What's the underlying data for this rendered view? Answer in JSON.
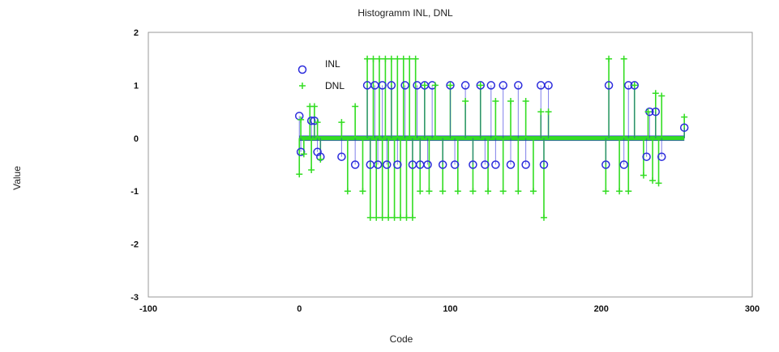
{
  "chart_data": {
    "type": "scatter",
    "title": "Histogramm INL, DNL",
    "xlabel": "Code",
    "ylabel": "Value",
    "xlim": [
      -100,
      300
    ],
    "ylim": [
      -3,
      2
    ],
    "xticks": [
      -100,
      0,
      100,
      200,
      300
    ],
    "yticks": [
      -3,
      -2,
      -1,
      0,
      1,
      2
    ],
    "xtick_labels": [
      "-100",
      "0",
      "100",
      "200",
      "300"
    ],
    "ytick_labels": [
      "-3",
      "-2",
      "-1",
      "0",
      "1",
      "2"
    ],
    "grid": true,
    "legend": "top-left inside",
    "series": [
      {
        "name": "INL",
        "marker": "circle",
        "color": "#2b2bdc",
        "x": [
          0,
          1,
          8,
          10,
          12,
          14,
          28,
          37,
          45,
          47,
          50,
          52,
          55,
          58,
          61,
          65,
          70,
          75,
          78,
          80,
          83,
          85,
          88,
          95,
          100,
          103,
          110,
          115,
          120,
          123,
          127,
          130,
          135,
          140,
          145,
          150,
          160,
          162,
          165,
          203,
          205,
          215,
          218,
          222,
          230,
          232,
          236,
          240,
          255
        ],
        "y": [
          0.42,
          -0.26,
          0.33,
          0.33,
          -0.26,
          -0.35,
          -0.35,
          -0.5,
          1.0,
          -0.5,
          1.0,
          -0.5,
          1.0,
          -0.5,
          1.0,
          -0.5,
          1.0,
          -0.5,
          1.0,
          -0.5,
          1.0,
          -0.5,
          1.0,
          -0.5,
          1.0,
          -0.5,
          1.0,
          -0.5,
          1.0,
          -0.5,
          1.0,
          -0.5,
          1.0,
          -0.5,
          1.0,
          -0.5,
          1.0,
          -0.5,
          1.0,
          -0.5,
          1.0,
          -0.5,
          1.0,
          1.0,
          -0.35,
          0.5,
          0.5,
          -0.35,
          0.2
        ]
      },
      {
        "name": "DNL",
        "marker": "plus",
        "color": "#33dd22",
        "x": [
          0,
          1,
          3,
          7,
          8,
          10,
          12,
          14,
          28,
          32,
          37,
          42,
          45,
          47,
          49,
          51,
          53,
          55,
          57,
          59,
          61,
          63,
          65,
          67,
          69,
          71,
          73,
          75,
          77,
          80,
          83,
          86,
          90,
          95,
          100,
          105,
          110,
          115,
          120,
          125,
          130,
          135,
          140,
          145,
          150,
          155,
          160,
          162,
          165,
          203,
          205,
          212,
          215,
          218,
          222,
          228,
          231,
          234,
          236,
          238,
          240,
          255
        ],
        "y": [
          -0.68,
          0.35,
          -0.3,
          0.6,
          -0.6,
          0.6,
          0.3,
          -0.4,
          0.3,
          -1.0,
          0.6,
          -1.0,
          1.5,
          -1.5,
          1.5,
          -1.5,
          1.5,
          -1.5,
          1.5,
          -1.5,
          1.5,
          -1.5,
          1.5,
          -1.5,
          1.5,
          -1.5,
          1.5,
          -1.5,
          1.5,
          -1.0,
          1.0,
          -1.0,
          1.0,
          -1.0,
          1.0,
          -1.0,
          0.7,
          -1.0,
          1.0,
          -1.0,
          0.7,
          -1.0,
          0.7,
          -1.0,
          0.7,
          -1.0,
          0.5,
          -1.5,
          0.5,
          -1.0,
          1.5,
          -1.0,
          1.5,
          -1.0,
          1.0,
          -0.7,
          0.5,
          -0.8,
          0.85,
          -0.85,
          0.8,
          0.4
        ]
      }
    ]
  }
}
